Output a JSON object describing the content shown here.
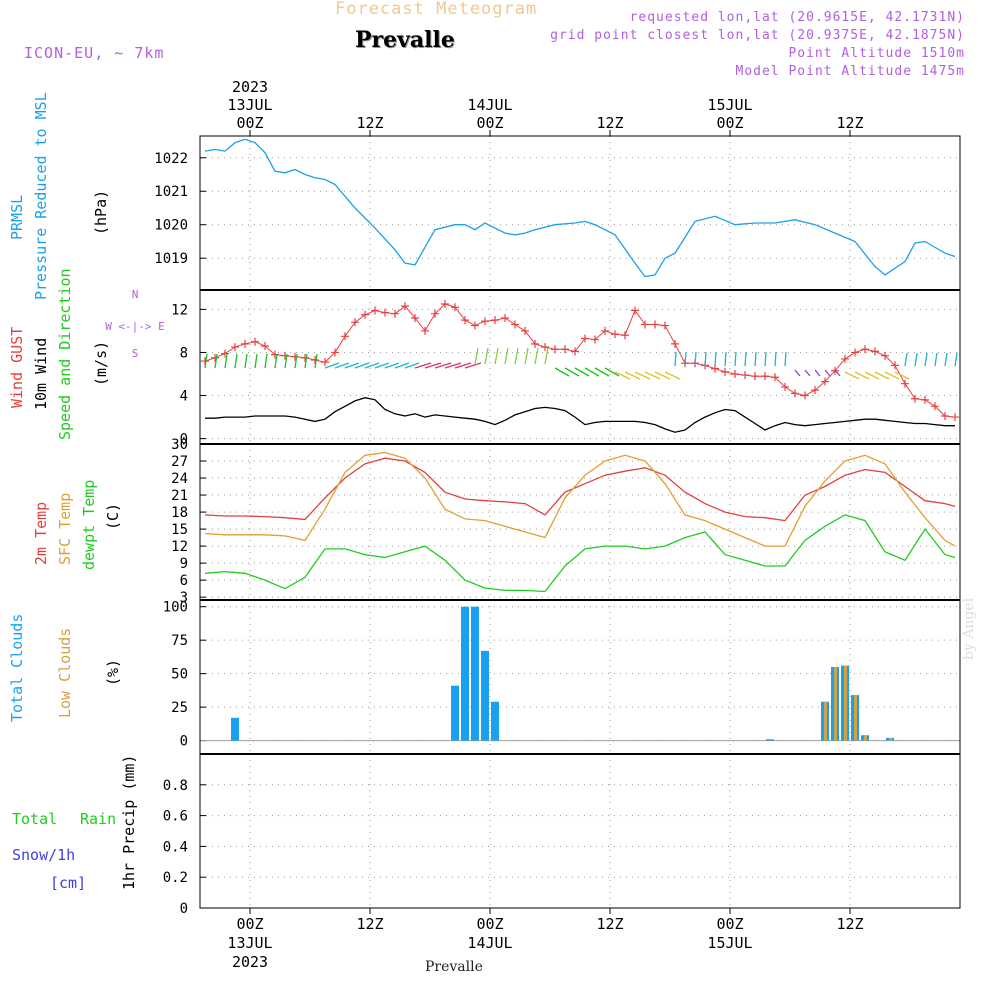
{
  "header": {
    "title": "Forecast Meteogram",
    "place": "Prevalle",
    "model": "ICON-EU, ~ 7km",
    "requested": "requested lon,lat (20.9615E, 42.1731N)",
    "gridpoint": "grid point closest lon,lat (20.9375E, 42.1875N)",
    "altitude": "Point Altitude 1510m",
    "model_altitude": "Model Point Altitude 1475m"
  },
  "footer": {
    "place": "Prevalle",
    "credit": "by Angel"
  },
  "time_axis": {
    "top_year": "2023",
    "ticks": [
      {
        "hour": 0,
        "label": "00Z",
        "date": "13JUL",
        "year": "2023"
      },
      {
        "hour": 12,
        "label": "12Z",
        "date": "",
        "year": ""
      },
      {
        "hour": 24,
        "label": "00Z",
        "date": "14JUL",
        "year": ""
      },
      {
        "hour": 36,
        "label": "12Z",
        "date": "",
        "year": ""
      },
      {
        "hour": 48,
        "label": "00Z",
        "date": "15JUL",
        "year": ""
      },
      {
        "hour": 60,
        "label": "12Z",
        "date": "",
        "year": ""
      }
    ],
    "range_hours": [
      -5,
      71
    ]
  },
  "panel_labels": {
    "pressure": [
      "PRMSL",
      "Pressure Reduced to MSL",
      "(hPa)"
    ],
    "wind": [
      "Wind GUST",
      "10m Wind",
      "Speed and Direction",
      "(m/s)"
    ],
    "compass": [
      "N",
      "W <-|-> E",
      "S"
    ],
    "temp": [
      "2m Temp",
      "SFC Temp",
      "dewpt Temp",
      "(C)"
    ],
    "clouds": [
      "Total Clouds",
      "Low Clouds",
      "(%)"
    ],
    "precip": [
      "Total",
      "Rain",
      "Snow/1h",
      "[cm]",
      "1hr Precip (mm)"
    ]
  },
  "colors": {
    "pressure": "#1ca0e8",
    "gust": "#e84040",
    "wind": "#000000",
    "t2m": "#e04040",
    "sfc": "#e0a030",
    "dewpt": "#20cc20",
    "total_clouds": "#1aa0f0",
    "low_clouds": "#d8a040",
    "label_purple": "#b060e0",
    "snow": "#4040e0"
  },
  "chart_data": [
    {
      "type": "line",
      "title": "PRMSL Pressure Reduced to MSL",
      "ylabel": "(hPa)",
      "ylim": [
        1018.05,
        1022.65
      ],
      "yticks": [
        1019,
        1020,
        1021,
        1022
      ],
      "x": [
        -4.5,
        -3.5,
        -2.5,
        -1.5,
        -0.5,
        0.5,
        1.5,
        2.5,
        3.5,
        4.5,
        5.5,
        6.5,
        7.5,
        8.5,
        10.5,
        12.5,
        14.5,
        15.5,
        16.5,
        18.5,
        20.5,
        21.5,
        22.5,
        23.5,
        24.5,
        25.5,
        26.5,
        27.5,
        28.5,
        30.5,
        32.5,
        33.5,
        34.5,
        36.5,
        38.5,
        39.5,
        40.5,
        41.5,
        42.5,
        44.5,
        46.5,
        48.5,
        50.5,
        52.5,
        53.5,
        54.5,
        56.5,
        58.5,
        60.5,
        62.5,
        63.5,
        65.5,
        66.5,
        67.5,
        69.5,
        70.5
      ],
      "series": [
        {
          "values": [
            1022.2,
            1022.25,
            1022.2,
            1022.45,
            1022.55,
            1022.45,
            1022.15,
            1021.6,
            1021.55,
            1021.65,
            1021.5,
            1021.4,
            1021.35,
            1021.2,
            1020.5,
            1019.9,
            1019.25,
            1018.85,
            1018.8,
            1019.85,
            1020.0,
            1020.0,
            1019.85,
            1020.05,
            1019.9,
            1019.75,
            1019.7,
            1019.75,
            1019.85,
            1020.0,
            1020.05,
            1020.1,
            1020.0,
            1019.7,
            1018.85,
            1018.45,
            1018.5,
            1019.0,
            1019.15,
            1020.1,
            1020.25,
            1020.0,
            1020.05,
            1020.05,
            1020.1,
            1020.15,
            1020.0,
            1019.75,
            1019.5,
            1018.75,
            1018.5,
            1018.9,
            1019.45,
            1019.5,
            1019.15,
            1019.05
          ]
        }
      ]
    },
    {
      "type": "line",
      "title": "Wind GUST / 10m Wind Speed and Direction",
      "ylabel": "(m/s)",
      "ylim": [
        -0.5,
        13.8
      ],
      "yticks": [
        0,
        4,
        8,
        12
      ],
      "x": [
        -4.5,
        -3.5,
        -2.5,
        -1.5,
        -0.5,
        0.5,
        1.5,
        2.5,
        3.5,
        4.5,
        5.5,
        6.5,
        7.5,
        8.5,
        9.5,
        10.5,
        11.5,
        12.5,
        13.5,
        14.5,
        15.5,
        16.5,
        17.5,
        18.5,
        19.5,
        20.5,
        21.5,
        22.5,
        23.5,
        24.5,
        25.5,
        26.5,
        27.5,
        28.5,
        29.5,
        30.5,
        31.5,
        32.5,
        33.5,
        34.5,
        35.5,
        36.5,
        37.5,
        38.5,
        39.5,
        40.5,
        41.5,
        42.5,
        43.5,
        44.5,
        45.5,
        46.5,
        47.5,
        48.5,
        49.5,
        50.5,
        51.5,
        52.5,
        53.5,
        54.5,
        55.5,
        56.5,
        57.5,
        58.5,
        59.5,
        60.5,
        61.5,
        62.5,
        63.5,
        64.5,
        65.5,
        66.5,
        67.5,
        68.5,
        69.5,
        70.5
      ],
      "series": [
        {
          "name": "Wind GUST",
          "values": [
            7.2,
            7.5,
            7.9,
            8.5,
            8.8,
            9.0,
            8.6,
            7.8,
            7.7,
            7.6,
            7.5,
            7.3,
            7.1,
            8.0,
            9.5,
            10.8,
            11.5,
            11.9,
            11.7,
            11.6,
            12.3,
            11.2,
            10.0,
            11.6,
            12.5,
            12.2,
            11.0,
            10.5,
            10.9,
            11.0,
            11.2,
            10.6,
            10.0,
            8.8,
            8.5,
            8.3,
            8.3,
            8.1,
            9.3,
            9.2,
            10.0,
            9.7,
            9.6,
            11.9,
            10.6,
            10.6,
            10.5,
            8.8,
            7.0,
            7.0,
            6.8,
            6.5,
            6.2,
            6.0,
            5.9,
            5.8,
            5.8,
            5.7,
            4.8,
            4.2,
            4.0,
            4.5,
            5.3,
            6.3,
            7.4,
            8.0,
            8.3,
            8.1,
            7.7,
            6.8,
            5.1,
            3.7,
            3.6,
            3.0,
            2.1,
            2.0
          ]
        },
        {
          "name": "10m Wind",
          "values": [
            1.9,
            1.9,
            2.0,
            2.0,
            2.0,
            2.1,
            2.1,
            2.1,
            2.1,
            2.0,
            1.8,
            1.6,
            1.8,
            2.5,
            3.0,
            3.5,
            3.8,
            3.6,
            2.7,
            2.3,
            2.1,
            2.3,
            2.0,
            2.2,
            2.1,
            2.0,
            1.9,
            1.8,
            1.6,
            1.3,
            1.7,
            2.2,
            2.5,
            2.8,
            2.9,
            2.8,
            2.6,
            2.0,
            1.3,
            1.5,
            1.6,
            1.6,
            1.6,
            1.6,
            1.5,
            1.3,
            0.9,
            0.6,
            0.8,
            1.5,
            2.0,
            2.4,
            2.7,
            2.6,
            2.0,
            1.4,
            0.8,
            1.2,
            1.5,
            1.3,
            1.2,
            1.3,
            1.4,
            1.5,
            1.6,
            1.7,
            1.8,
            1.8,
            1.7,
            1.6,
            1.5,
            1.4,
            1.4,
            1.3,
            1.2,
            1.2
          ]
        }
      ]
    },
    {
      "type": "line",
      "title": "2m Temp / SFC Temp / dewpt Temp",
      "ylabel": "(C)",
      "ylim": [
        2.5,
        30
      ],
      "yticks": [
        3,
        6,
        9,
        12,
        15,
        18,
        21,
        24,
        27,
        30
      ],
      "x": [
        -4.5,
        -2.5,
        -0.5,
        1.5,
        3.5,
        5.5,
        7.5,
        9.5,
        11.5,
        13.5,
        15.5,
        17.5,
        19.5,
        21.5,
        23.5,
        25.5,
        27.5,
        29.5,
        31.5,
        33.5,
        35.5,
        37.5,
        39.5,
        41.5,
        43.5,
        45.5,
        47.5,
        49.5,
        51.5,
        53.5,
        55.5,
        57.5,
        59.5,
        61.5,
        63.5,
        65.5,
        67.5,
        69.5,
        70.5
      ],
      "series": [
        {
          "name": "2m Temp",
          "values": [
            17.5,
            17.3,
            17.3,
            17.2,
            17.0,
            16.7,
            20.5,
            24.0,
            26.5,
            27.5,
            27.0,
            25.0,
            21.5,
            20.3,
            20.0,
            19.8,
            19.5,
            17.5,
            21.5,
            23.0,
            24.5,
            25.2,
            25.8,
            24.5,
            21.5,
            19.5,
            18.0,
            17.2,
            17.0,
            16.5,
            21.0,
            22.5,
            24.5,
            25.5,
            25.0,
            22.5,
            20.0,
            19.5,
            19.0
          ]
        },
        {
          "name": "SFC Temp",
          "values": [
            14.2,
            14.0,
            14.0,
            14.0,
            13.8,
            13.0,
            18.5,
            25.0,
            28.0,
            28.5,
            27.5,
            24.0,
            18.5,
            16.8,
            16.5,
            15.5,
            14.5,
            13.5,
            20.5,
            24.5,
            27.0,
            28.0,
            27.0,
            23.0,
            17.5,
            16.5,
            15.0,
            13.5,
            12.0,
            12.0,
            19.0,
            23.5,
            27.0,
            28.0,
            26.5,
            21.5,
            17.0,
            13.0,
            12.0
          ]
        },
        {
          "name": "dewpt Temp",
          "values": [
            7.2,
            7.5,
            7.2,
            6.0,
            4.5,
            6.5,
            11.5,
            11.5,
            10.5,
            10.0,
            11.0,
            12.0,
            9.5,
            6.0,
            4.6,
            4.2,
            4.2,
            4.0,
            8.5,
            11.5,
            12.0,
            12.0,
            11.5,
            12.0,
            13.5,
            14.5,
            10.5,
            9.5,
            8.5,
            8.5,
            13.0,
            15.5,
            17.5,
            16.5,
            11.0,
            9.5,
            15.0,
            10.5,
            10.0
          ]
        }
      ]
    },
    {
      "type": "bar",
      "title": "Total Clouds / Low Clouds",
      "ylabel": "(%)",
      "ylim": [
        -10,
        105
      ],
      "yticks": [
        0,
        25,
        50,
        75,
        100
      ],
      "series": [
        {
          "name": "Total Clouds",
          "x": [
            -1.5,
            20.5,
            21.5,
            22.5,
            23.5,
            24.5,
            52.0,
            57.5,
            58.5,
            59.5,
            60.5,
            61.5,
            64.0
          ],
          "values": [
            17,
            41,
            100,
            100,
            67,
            29,
            1,
            29,
            55,
            56,
            34,
            4,
            2
          ]
        },
        {
          "name": "Low Clouds",
          "x": [
            57.5,
            58.5,
            59.5,
            60.5,
            61.5,
            64.0
          ],
          "values": [
            29,
            55,
            56,
            34,
            4,
            2
          ]
        }
      ]
    },
    {
      "type": "line",
      "title": "1hr Precip (mm)",
      "ylabel": "1hr Precip (mm)",
      "ylim": [
        0,
        1.0
      ],
      "yticks": [
        0,
        0.2,
        0.4,
        0.6,
        0.8
      ],
      "series": [
        {
          "name": "Total Rain",
          "values": [
            0
          ]
        }
      ]
    }
  ]
}
